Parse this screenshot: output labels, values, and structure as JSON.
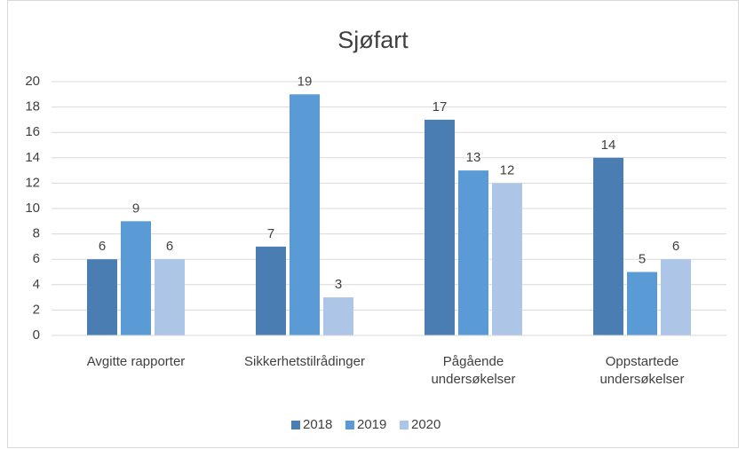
{
  "chart_data": {
    "type": "bar",
    "title": "Sjøfart",
    "categories": [
      "Avgitte rapporter",
      "Sikkerhetstilrådinger",
      "Pågående\nundersøkelser",
      "Oppstartede\nundersøkelser"
    ],
    "series": [
      {
        "name": "2018",
        "color": "#4a7eb3",
        "values": [
          6,
          7,
          17,
          14
        ]
      },
      {
        "name": "2019",
        "color": "#5b9bd5",
        "values": [
          9,
          19,
          13,
          5
        ]
      },
      {
        "name": "2020",
        "color": "#adc5e7",
        "values": [
          6,
          3,
          12,
          6
        ]
      }
    ],
    "ylim": [
      0,
      20
    ],
    "yticks": [
      0,
      2,
      4,
      6,
      8,
      10,
      12,
      14,
      16,
      18,
      20
    ],
    "grid": true,
    "legend": "bottom"
  }
}
